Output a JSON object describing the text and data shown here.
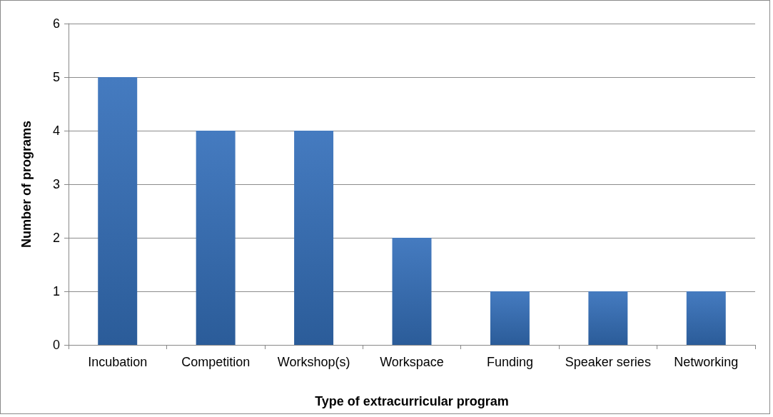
{
  "chart_data": {
    "type": "bar",
    "xlabel": "Type of extracurricular program",
    "ylabel": "Number of programs",
    "categories": [
      "Incubation",
      "Competition",
      "Workshop(s)",
      "Workspace",
      "Funding",
      "Speaker series",
      "Networking"
    ],
    "values": [
      5,
      4,
      4,
      2,
      1,
      1,
      1
    ],
    "color": "#3570bb",
    "ylim": [
      0,
      6
    ],
    "yticks": [
      0,
      1,
      2,
      3,
      4,
      5,
      6
    ],
    "grid": "y"
  }
}
